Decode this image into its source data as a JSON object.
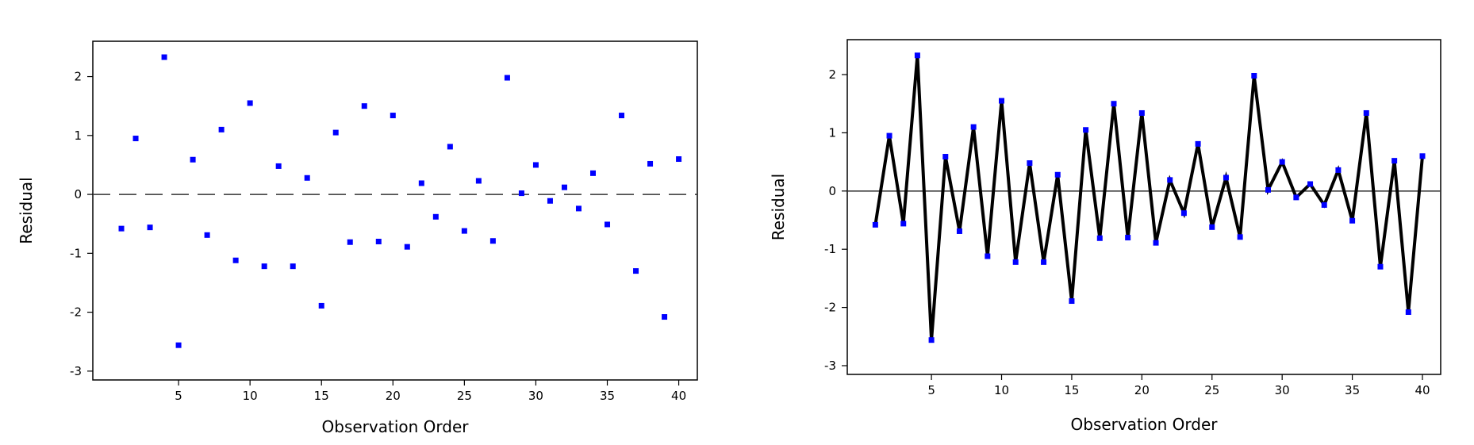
{
  "chart_data": [
    {
      "type": "scatter",
      "title": "",
      "xlabel": "Observation Order",
      "ylabel": "Residual",
      "xlim": [
        -1,
        41.3
      ],
      "ylim": [
        -3.15,
        2.6
      ],
      "xticks": [
        5,
        10,
        15,
        20,
        25,
        30,
        35,
        40
      ],
      "yticks": [
        -3,
        -2,
        -1,
        0,
        1,
        2
      ],
      "reference_line": 0,
      "grid": false,
      "connect_points": false,
      "point_color": "#0000ff",
      "x": [
        1,
        2,
        3,
        4,
        5,
        6,
        7,
        8,
        9,
        10,
        11,
        12,
        13,
        14,
        15,
        16,
        17,
        18,
        19,
        20,
        21,
        22,
        23,
        24,
        25,
        26,
        27,
        28,
        29,
        30,
        31,
        32,
        33,
        34,
        35,
        36,
        37,
        38,
        39,
        40
      ],
      "y": [
        -0.58,
        0.95,
        -0.56,
        2.33,
        -2.56,
        0.59,
        -0.69,
        1.1,
        -1.12,
        1.55,
        -1.22,
        0.48,
        -1.22,
        0.28,
        -1.89,
        1.05,
        -0.81,
        1.5,
        -0.8,
        1.34,
        -0.89,
        0.19,
        -0.38,
        0.81,
        -0.62,
        0.23,
        -0.79,
        1.98,
        0.02,
        0.5,
        -0.11,
        0.12,
        -0.24,
        0.36,
        -0.51,
        1.34,
        -1.3,
        0.52,
        -2.08,
        0.6
      ]
    },
    {
      "type": "line",
      "title": "",
      "xlabel": "Observation Order",
      "ylabel": "Residual",
      "xlim": [
        -1,
        41.3
      ],
      "ylim": [
        -3.15,
        2.6
      ],
      "xticks": [
        5,
        10,
        15,
        20,
        25,
        30,
        35,
        40
      ],
      "yticks": [
        -3,
        -2,
        -1,
        0,
        1,
        2
      ],
      "reference_line": 0,
      "grid": false,
      "connect_points": true,
      "point_color": "#0000ff",
      "line_color": "#000000",
      "x": [
        1,
        2,
        3,
        4,
        5,
        6,
        7,
        8,
        9,
        10,
        11,
        12,
        13,
        14,
        15,
        16,
        17,
        18,
        19,
        20,
        21,
        22,
        23,
        24,
        25,
        26,
        27,
        28,
        29,
        30,
        31,
        32,
        33,
        34,
        35,
        36,
        37,
        38,
        39,
        40
      ],
      "y": [
        -0.58,
        0.95,
        -0.56,
        2.33,
        -2.56,
        0.59,
        -0.69,
        1.1,
        -1.12,
        1.55,
        -1.22,
        0.48,
        -1.22,
        0.28,
        -1.89,
        1.05,
        -0.81,
        1.5,
        -0.8,
        1.34,
        -0.89,
        0.19,
        -0.38,
        0.81,
        -0.62,
        0.23,
        -0.79,
        1.98,
        0.02,
        0.5,
        -0.11,
        0.12,
        -0.24,
        0.36,
        -0.51,
        1.34,
        -1.3,
        0.52,
        -2.08,
        0.6
      ]
    }
  ]
}
